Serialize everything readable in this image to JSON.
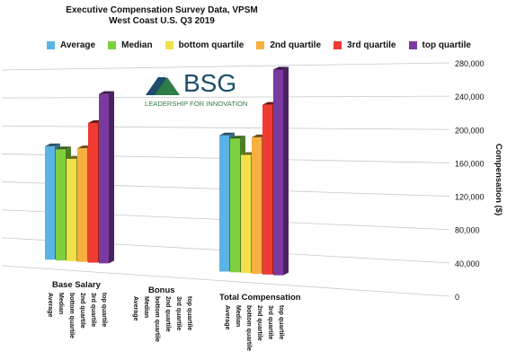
{
  "chart_data": {
    "type": "bar",
    "title": "Executive Compensation Survey Data, VPSM",
    "subtitle": "West Coast U.S. Q3 2019",
    "ylabel": "Compensation ($)",
    "xlabel": "",
    "ylim": [
      0,
      280000
    ],
    "y_ticks": [
      "0",
      "40,000",
      "80,000",
      "120,000",
      "160,000",
      "200,000",
      "240,000",
      "280,000"
    ],
    "grid": true,
    "legend_position": "top",
    "categories": [
      "Base Salary",
      "Bonus",
      "Total Compensation"
    ],
    "bar_labels": [
      "Average",
      "Median",
      "bottom quartile",
      "2nd quartile",
      "3rd quartile",
      "top quartile"
    ],
    "series": [
      {
        "name": "Average",
        "color": "#5bb4e5",
        "values": [
          172000,
          null,
          190000
        ]
      },
      {
        "name": "Median",
        "color": "#7ed03e",
        "values": [
          168000,
          null,
          186000
        ]
      },
      {
        "name": "bottom quartile",
        "color": "#f2e04a",
        "values": [
          155000,
          null,
          165000
        ]
      },
      {
        "name": "2nd quartile",
        "color": "#f7b03f",
        "values": [
          170000,
          null,
          188000
        ]
      },
      {
        "name": "3rd quartile",
        "color": "#f03a32",
        "values": [
          205000,
          null,
          230000
        ]
      },
      {
        "name": "top quartile",
        "color": "#7b3aa0",
        "values": [
          245000,
          null,
          275000
        ]
      }
    ]
  },
  "logo": {
    "name": "BSG",
    "tagline": "LEADERSHIP FOR INNOVATION",
    "color": "#1d4e6b",
    "accent": "#2e7d46"
  }
}
